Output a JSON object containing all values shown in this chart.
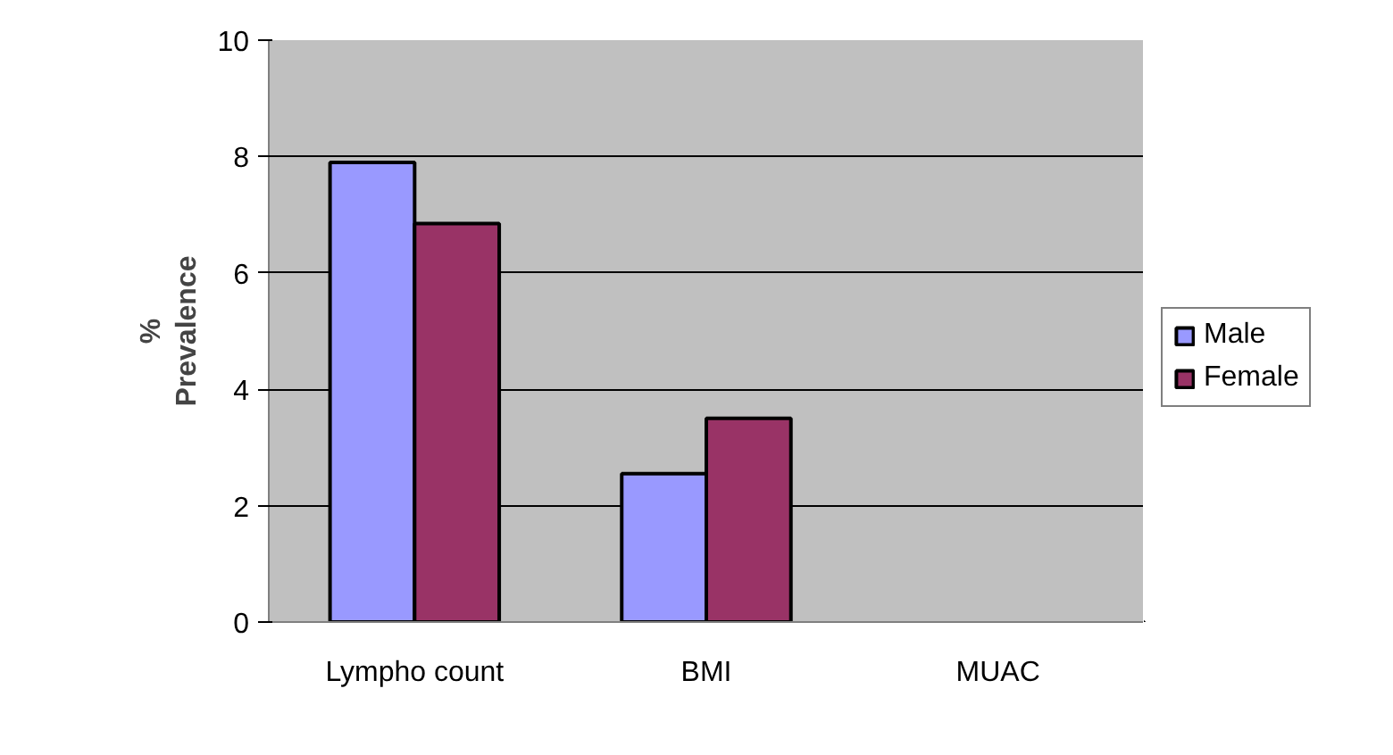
{
  "chart_data": {
    "type": "bar",
    "ylabel": "% Prevalence",
    "categories": [
      "Lympho count",
      "BMI",
      "MUAC"
    ],
    "series": [
      {
        "name": "Male",
        "color": "#9999ff",
        "values": [
          7.9,
          2.55,
          null
        ]
      },
      {
        "name": "Female",
        "color": "#993366",
        "values": [
          6.85,
          3.5,
          null
        ]
      }
    ],
    "ylim": [
      0,
      10
    ],
    "yticks": [
      0,
      2,
      4,
      6,
      8,
      10
    ],
    "grid": "y",
    "legend": "right"
  }
}
